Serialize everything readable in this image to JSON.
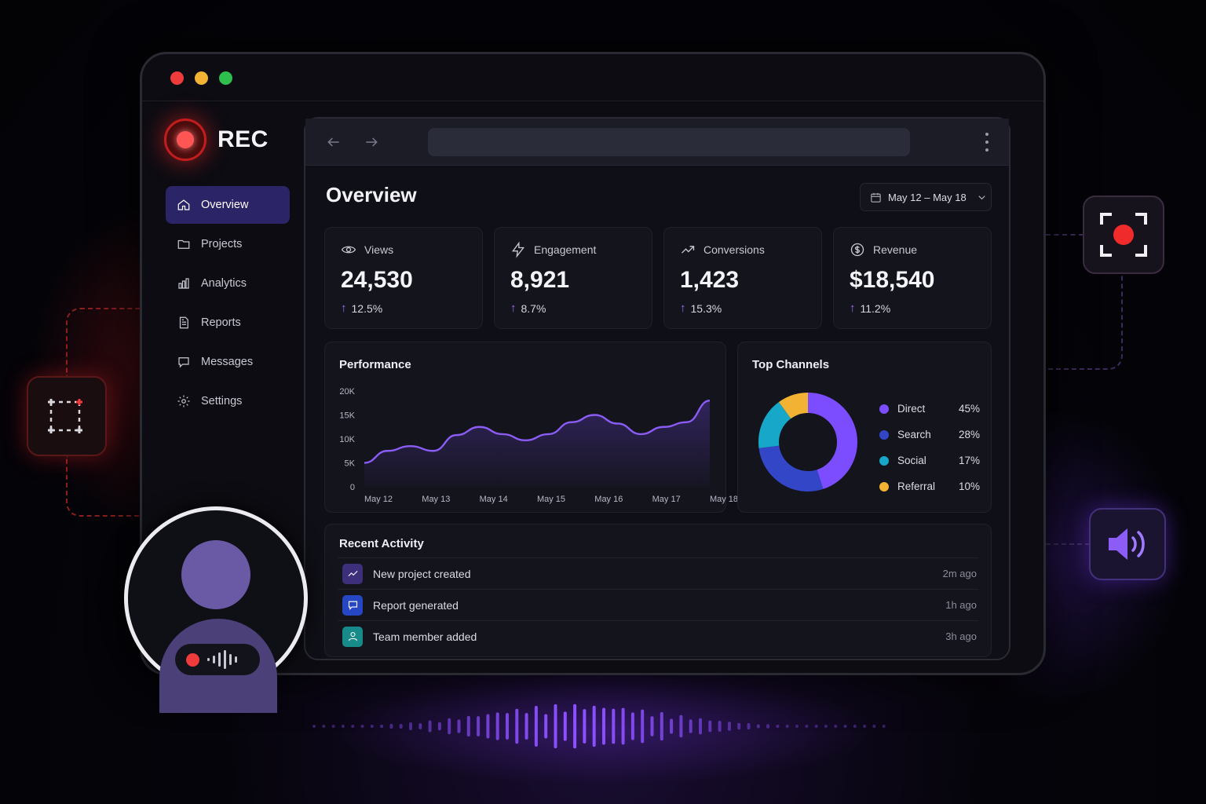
{
  "app": {
    "name": "REC",
    "colors": {
      "accent": "#2b2466",
      "rec_red": "#ef3b3b",
      "purple": "#8b5cf6"
    }
  },
  "sidebar": {
    "items": [
      {
        "label": "Overview",
        "icon": "home-icon",
        "active": true
      },
      {
        "label": "Projects",
        "icon": "folder-icon",
        "active": false
      },
      {
        "label": "Analytics",
        "icon": "analytics-icon",
        "active": false
      },
      {
        "label": "Reports",
        "icon": "report-icon",
        "active": false
      },
      {
        "label": "Messages",
        "icon": "message-icon",
        "active": false
      },
      {
        "label": "Settings",
        "icon": "gear-icon",
        "active": false
      }
    ]
  },
  "main": {
    "title": "Overview",
    "date_range": "May 12 – May 18",
    "stats": [
      {
        "label": "Views",
        "value": "24,530",
        "delta": "12.5%",
        "icon": "eye-icon"
      },
      {
        "label": "Engagement",
        "value": "8,921",
        "delta": "8.7%",
        "icon": "lightning-icon"
      },
      {
        "label": "Conversions",
        "value": "1,423",
        "delta": "15.3%",
        "icon": "trend-icon"
      },
      {
        "label": "Revenue",
        "value": "$18,540",
        "delta": "11.2%",
        "icon": "dollar-icon"
      }
    ],
    "performance": {
      "title": "Performance"
    },
    "channels": {
      "title": "Top Channels",
      "items": [
        {
          "name": "Direct",
          "pct": "45%",
          "color": "#7c4dff"
        },
        {
          "name": "Search",
          "pct": "28%",
          "color": "#3346c8"
        },
        {
          "name": "Social",
          "pct": "17%",
          "color": "#17a7c9"
        },
        {
          "name": "Referral",
          "pct": "10%",
          "color": "#f2b233"
        }
      ]
    },
    "activity": {
      "title": "Recent Activity",
      "items": [
        {
          "text": "New project created",
          "time": "2m ago",
          "icon": "trend-icon",
          "color": "#3d2f7a"
        },
        {
          "text": "Report generated",
          "time": "1h ago",
          "icon": "chat-icon",
          "color": "#2746c4"
        },
        {
          "text": "Team member added",
          "time": "3h ago",
          "icon": "user-icon",
          "color": "#178a8a"
        }
      ]
    }
  },
  "chart_data": {
    "type": "line",
    "title": "Performance",
    "x": [
      "May 12",
      "May 13",
      "May 14",
      "May 15",
      "May 16",
      "May 17",
      "May 18"
    ],
    "y_ticks": [
      "0",
      "5K",
      "10K",
      "15K",
      "20K"
    ],
    "ylim": [
      0,
      20000
    ],
    "series": [
      {
        "x": [
          0,
          0.4,
          0.8,
          1.2,
          1.6,
          2.0,
          2.4,
          2.8,
          3.2,
          3.6,
          4.0,
          4.4,
          4.8,
          5.2,
          5.6,
          6.0
        ],
        "values": [
          5000,
          7500,
          8500,
          7500,
          10800,
          12500,
          11000,
          9700,
          11000,
          13500,
          15000,
          13200,
          11000,
          12500,
          13500,
          18000
        ]
      }
    ],
    "grid": false
  },
  "channels_chart": {
    "type": "pie",
    "categories": [
      "Direct",
      "Search",
      "Social",
      "Referral"
    ],
    "values": [
      45,
      28,
      17,
      10
    ]
  }
}
